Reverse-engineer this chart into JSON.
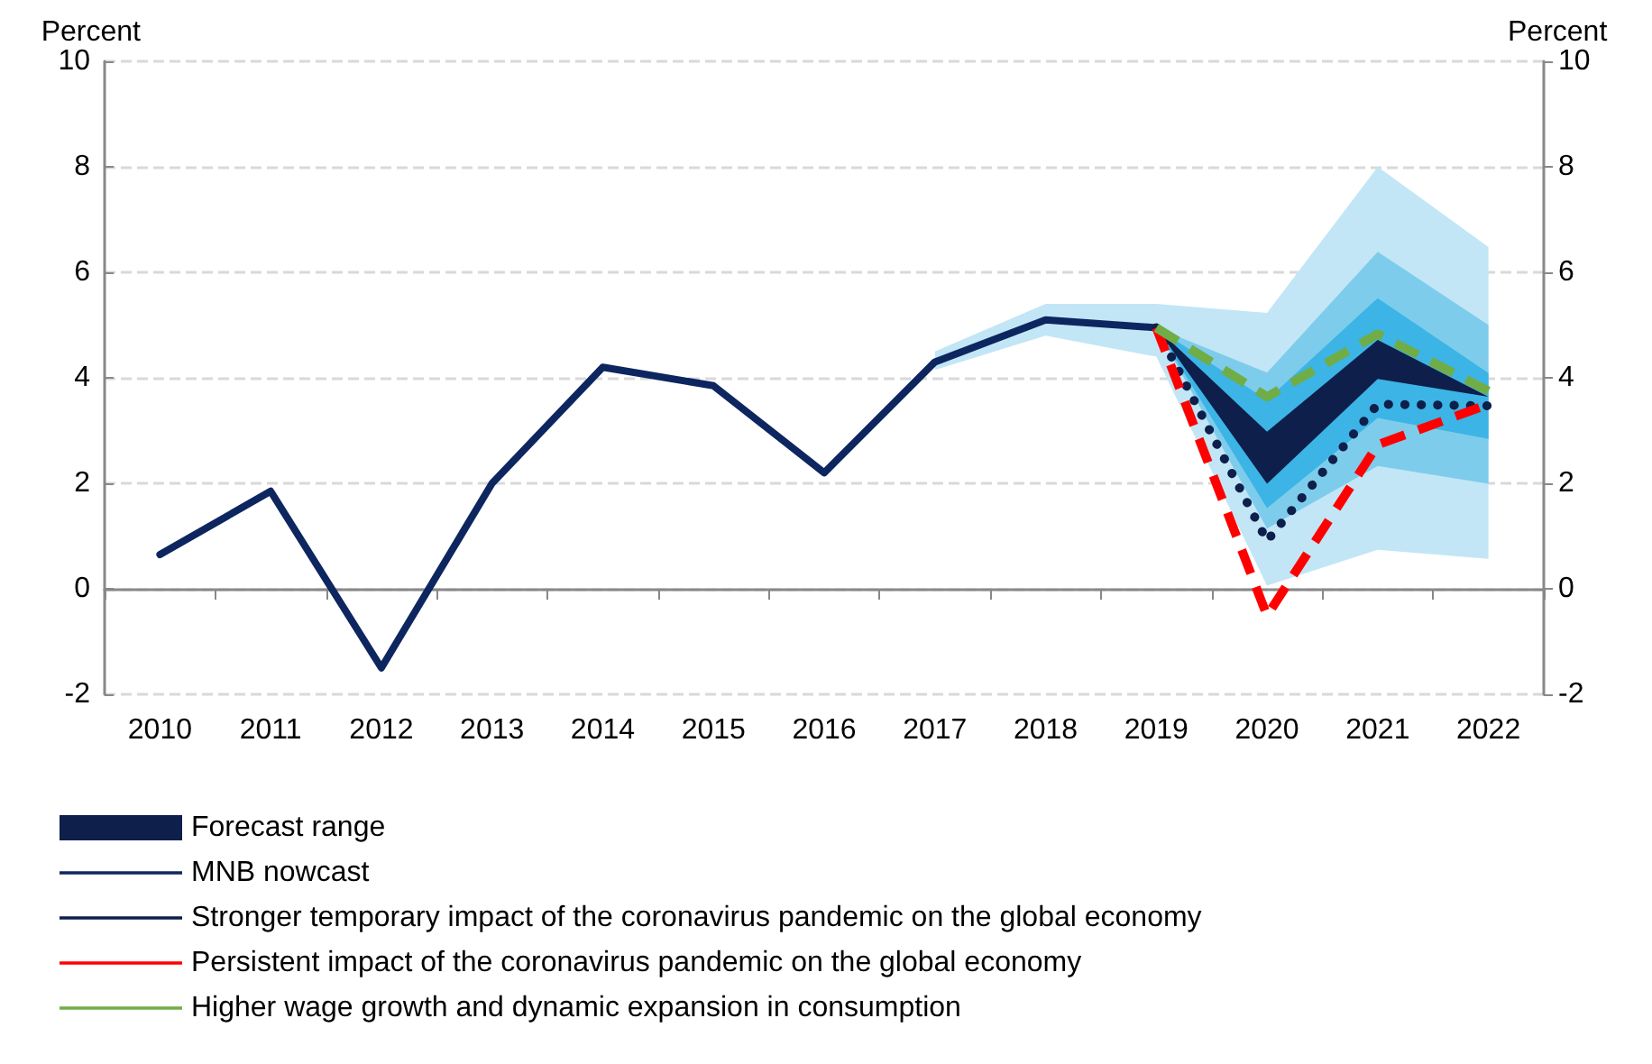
{
  "chart_data": {
    "type": "line",
    "ylabel": "Percent",
    "y2label": "Percent",
    "categories": [
      "2010",
      "2011",
      "2012",
      "2013",
      "2014",
      "2015",
      "2016",
      "2017",
      "2018",
      "2019",
      "2020",
      "2021",
      "2022"
    ],
    "ylim": [
      -2,
      10
    ],
    "yticks": [
      -2,
      0,
      2,
      4,
      6,
      8,
      10
    ],
    "y2lim": [
      -2,
      10
    ],
    "y2ticks": [
      -2,
      0,
      2,
      4,
      6,
      8,
      10
    ],
    "grid": "y",
    "legend": "bottom",
    "marker": "none",
    "series": [
      {
        "type": "area",
        "color": "#c2e6f6",
        "values": [
          null,
          null,
          null,
          null,
          null,
          null,
          null,
          null,
          null,
          null,
          null,
          null,
          null
        ],
        "lower": [
          null,
          null,
          null,
          null,
          null,
          null,
          null,
          4.15,
          4.8,
          4.4,
          0.06,
          0.74,
          0.57
        ],
        "upper": [
          null,
          null,
          null,
          null,
          null,
          null,
          null,
          4.5,
          5.4,
          5.4,
          5.23,
          8.0,
          6.48
        ]
      },
      {
        "type": "area",
        "color": "#7ecceb",
        "values": [
          null,
          null,
          null,
          null,
          null,
          null,
          null,
          null,
          null,
          null,
          null,
          null,
          null
        ],
        "lower": [
          null,
          null,
          null,
          null,
          null,
          null,
          null,
          null,
          null,
          4.95,
          1.14,
          2.33,
          1.99
        ],
        "upper": [
          null,
          null,
          null,
          null,
          null,
          null,
          null,
          null,
          null,
          4.95,
          4.1,
          6.39,
          5.0
        ]
      },
      {
        "type": "area",
        "color": "#3cb4e5",
        "values": [
          null,
          null,
          null,
          null,
          null,
          null,
          null,
          null,
          null,
          null,
          null,
          null,
          null
        ],
        "lower": [
          null,
          null,
          null,
          null,
          null,
          null,
          null,
          null,
          null,
          4.95,
          1.53,
          3.24,
          2.84
        ],
        "upper": [
          null,
          null,
          null,
          null,
          null,
          null,
          null,
          null,
          null,
          4.95,
          3.58,
          5.51,
          4.09
        ]
      },
      {
        "type": "area",
        "name": "Forecast range",
        "color": "#0d1f4a",
        "values": [
          null,
          null,
          null,
          null,
          null,
          null,
          null,
          null,
          null,
          null,
          null,
          null,
          null
        ],
        "lower": [
          null,
          null,
          null,
          null,
          null,
          null,
          null,
          null,
          null,
          4.95,
          1.99,
          3.98,
          3.64
        ],
        "upper": [
          null,
          null,
          null,
          null,
          null,
          null,
          null,
          null,
          null,
          4.95,
          2.98,
          4.72,
          3.64
        ]
      },
      {
        "name": "MNB nowcast",
        "color": "#0d2660",
        "line_style": "solid",
        "values": [
          0.65,
          1.85,
          -1.5,
          2.0,
          4.2,
          3.85,
          2.2,
          4.3,
          5.1,
          4.95,
          null,
          null,
          null
        ]
      },
      {
        "name": "Stronger temporary impact of the coronavirus pandemic on the global economy",
        "color": "#0d1f4a",
        "line_style": "dotted",
        "values": [
          null,
          null,
          null,
          null,
          null,
          null,
          null,
          null,
          null,
          4.95,
          0.91,
          3.5,
          3.47
        ]
      },
      {
        "name": "Persistent impact of the coronavirus pandemic on the global economy",
        "color": "#ff0000",
        "line_style": "dashed",
        "values": [
          null,
          null,
          null,
          null,
          null,
          null,
          null,
          null,
          null,
          4.95,
          -0.51,
          2.73,
          3.5
        ]
      },
      {
        "name": "Higher wage growth and dynamic expansion in consumption",
        "color": "#70ad47",
        "line_style": "dashed",
        "values": [
          null,
          null,
          null,
          null,
          null,
          null,
          null,
          null,
          null,
          4.95,
          3.64,
          4.83,
          3.75
        ]
      }
    ]
  }
}
